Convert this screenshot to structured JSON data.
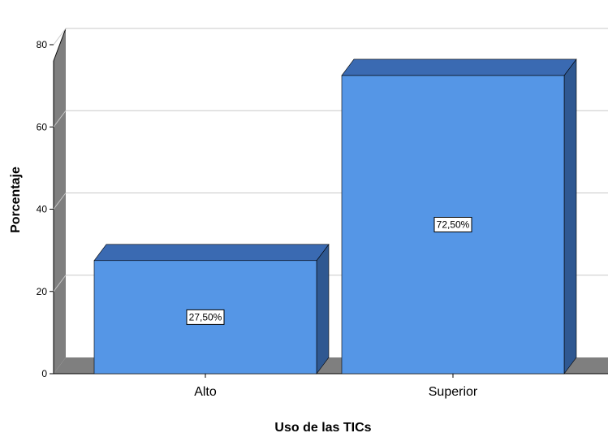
{
  "chart_data": {
    "type": "bar",
    "categories": [
      "Alto",
      "Superior"
    ],
    "values": [
      27.5,
      72.5
    ],
    "data_labels": [
      "27,50%",
      "72,50%"
    ],
    "xlabel": "Uso de las TICs",
    "ylabel": "Porcentaje",
    "ylim": [
      0,
      80
    ],
    "yticks": [
      "0",
      "20",
      "40",
      "60",
      "80"
    ],
    "grid": true,
    "legend": "none",
    "style": "3d-bar"
  },
  "colors": {
    "bar_front": "#5596e6",
    "bar_top": "#3a6ab2",
    "bar_side": "#2f5891",
    "wall": "#7f7f7f",
    "grid": "#c8c8c8"
  }
}
